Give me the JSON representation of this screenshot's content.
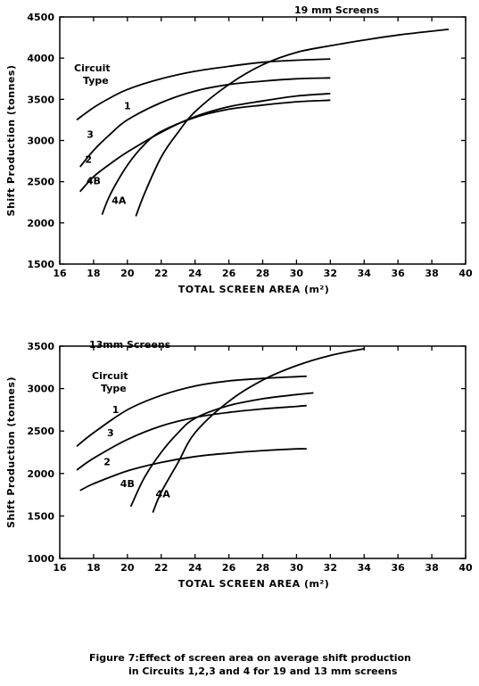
{
  "chart_data": [
    {
      "type": "line",
      "title": "19 mm Screens",
      "xlabel": "TOTAL SCREEN AREA (m²)",
      "ylabel": "Shift Production (tonnes)",
      "xlim": [
        16,
        40
      ],
      "ylim": [
        1500,
        4500
      ],
      "xticks": [
        "16",
        "18",
        "20",
        "22",
        "24",
        "26",
        "28",
        "30",
        "32",
        "34",
        "36",
        "38",
        "40"
      ],
      "yticks": [
        "1500",
        "2000",
        "2500",
        "3000",
        "3500",
        "4000",
        "4500"
      ],
      "grid": false,
      "legend_title": "Circuit Type",
      "series": [
        {
          "name": "1",
          "points": [
            [
              17,
              3250
            ],
            [
              18,
              3400
            ],
            [
              19,
              3520
            ],
            [
              20,
              3620
            ],
            [
              22,
              3750
            ],
            [
              24,
              3840
            ],
            [
              26,
              3900
            ],
            [
              28,
              3950
            ],
            [
              30,
              3975
            ],
            [
              32,
              3990
            ]
          ]
        },
        {
          "name": "3",
          "points": [
            [
              17.2,
              2680
            ],
            [
              18,
              2880
            ],
            [
              19,
              3080
            ],
            [
              20,
              3250
            ],
            [
              22,
              3460
            ],
            [
              24,
              3600
            ],
            [
              26,
              3680
            ],
            [
              28,
              3720
            ],
            [
              30,
              3750
            ],
            [
              32,
              3760
            ]
          ]
        },
        {
          "name": "2",
          "points": [
            [
              17.2,
              2380
            ],
            [
              18,
              2560
            ],
            [
              19,
              2720
            ],
            [
              20,
              2860
            ],
            [
              22,
              3100
            ],
            [
              24,
              3290
            ],
            [
              26,
              3410
            ],
            [
              28,
              3480
            ],
            [
              30,
              3540
            ],
            [
              32,
              3570
            ]
          ]
        },
        {
          "name": "4B",
          "points": [
            [
              18.5,
              2100
            ],
            [
              19,
              2350
            ],
            [
              20,
              2700
            ],
            [
              21,
              2950
            ],
            [
              22,
              3110
            ],
            [
              24,
              3280
            ],
            [
              26,
              3380
            ],
            [
              28,
              3430
            ],
            [
              30,
              3470
            ],
            [
              32,
              3490
            ]
          ]
        },
        {
          "name": "4A",
          "points": [
            [
              20.5,
              2080
            ],
            [
              21,
              2350
            ],
            [
              22,
              2800
            ],
            [
              23,
              3100
            ],
            [
              24,
              3350
            ],
            [
              26,
              3680
            ],
            [
              28,
              3920
            ],
            [
              30,
              4070
            ],
            [
              32,
              4150
            ],
            [
              34,
              4220
            ],
            [
              36,
              4280
            ],
            [
              39,
              4350
            ]
          ]
        }
      ],
      "label_positions": [
        {
          "text": "1",
          "x": 20.0,
          "y": 3380
        },
        {
          "text": "3",
          "x": 17.8,
          "y": 3030
        },
        {
          "text": "2",
          "x": 17.7,
          "y": 2730
        },
        {
          "text": "4B",
          "x": 18.0,
          "y": 2470
        },
        {
          "text": "4A",
          "x": 19.5,
          "y": 2230
        }
      ]
    },
    {
      "type": "line",
      "title": "13mm Screens",
      "xlabel": "TOTAL SCREEN AREA (m²)",
      "ylabel": "Shift Production (tonnes)",
      "xlim": [
        16,
        40
      ],
      "ylim": [
        1000,
        3500
      ],
      "xticks": [
        "16",
        "18",
        "20",
        "22",
        "24",
        "26",
        "28",
        "30",
        "32",
        "34",
        "36",
        "38",
        "40"
      ],
      "yticks": [
        "1000",
        "1500",
        "2000",
        "2500",
        "3000",
        "3500"
      ],
      "grid": false,
      "legend_title": "Circuit Type",
      "series": [
        {
          "name": "1",
          "points": [
            [
              17,
              2320
            ],
            [
              18,
              2480
            ],
            [
              20,
              2750
            ],
            [
              22,
              2920
            ],
            [
              24,
              3030
            ],
            [
              26,
              3090
            ],
            [
              28,
              3120
            ],
            [
              30,
              3140
            ],
            [
              30.6,
              3145
            ]
          ]
        },
        {
          "name": "3",
          "points": [
            [
              17,
              2040
            ],
            [
              18,
              2180
            ],
            [
              20,
              2400
            ],
            [
              22,
              2560
            ],
            [
              24,
              2660
            ],
            [
              26,
              2720
            ],
            [
              28,
              2760
            ],
            [
              30,
              2790
            ],
            [
              30.6,
              2800
            ]
          ]
        },
        {
          "name": "2",
          "points": [
            [
              17.2,
              1800
            ],
            [
              18,
              1880
            ],
            [
              20,
              2030
            ],
            [
              22,
              2130
            ],
            [
              24,
              2200
            ],
            [
              26,
              2240
            ],
            [
              28,
              2270
            ],
            [
              30,
              2290
            ],
            [
              30.6,
              2290
            ]
          ]
        },
        {
          "name": "4B",
          "points": [
            [
              20.2,
              1610
            ],
            [
              21,
              1950
            ],
            [
              22,
              2250
            ],
            [
              23,
              2480
            ],
            [
              24,
              2650
            ],
            [
              26,
              2800
            ],
            [
              28,
              2880
            ],
            [
              30,
              2930
            ],
            [
              31,
              2950
            ]
          ]
        },
        {
          "name": "4A",
          "points": [
            [
              21.5,
              1540
            ],
            [
              22,
              1780
            ],
            [
              23,
              2130
            ],
            [
              24,
              2480
            ],
            [
              26,
              2850
            ],
            [
              28,
              3100
            ],
            [
              30,
              3270
            ],
            [
              32,
              3390
            ],
            [
              34,
              3470
            ]
          ]
        }
      ],
      "label_positions": [
        {
          "text": "1",
          "x": 19.3,
          "y": 2710
        },
        {
          "text": "3",
          "x": 19.0,
          "y": 2440
        },
        {
          "text": "2",
          "x": 18.8,
          "y": 2100
        },
        {
          "text": "4B",
          "x": 20.0,
          "y": 1840
        },
        {
          "text": "4A",
          "x": 22.1,
          "y": 1720
        }
      ]
    }
  ],
  "caption": {
    "line1": "Figure  7:Effect of screen area on average shift production",
    "line2": "in Circuits 1,2,3 and 4 for 19 and 13 mm screens"
  }
}
